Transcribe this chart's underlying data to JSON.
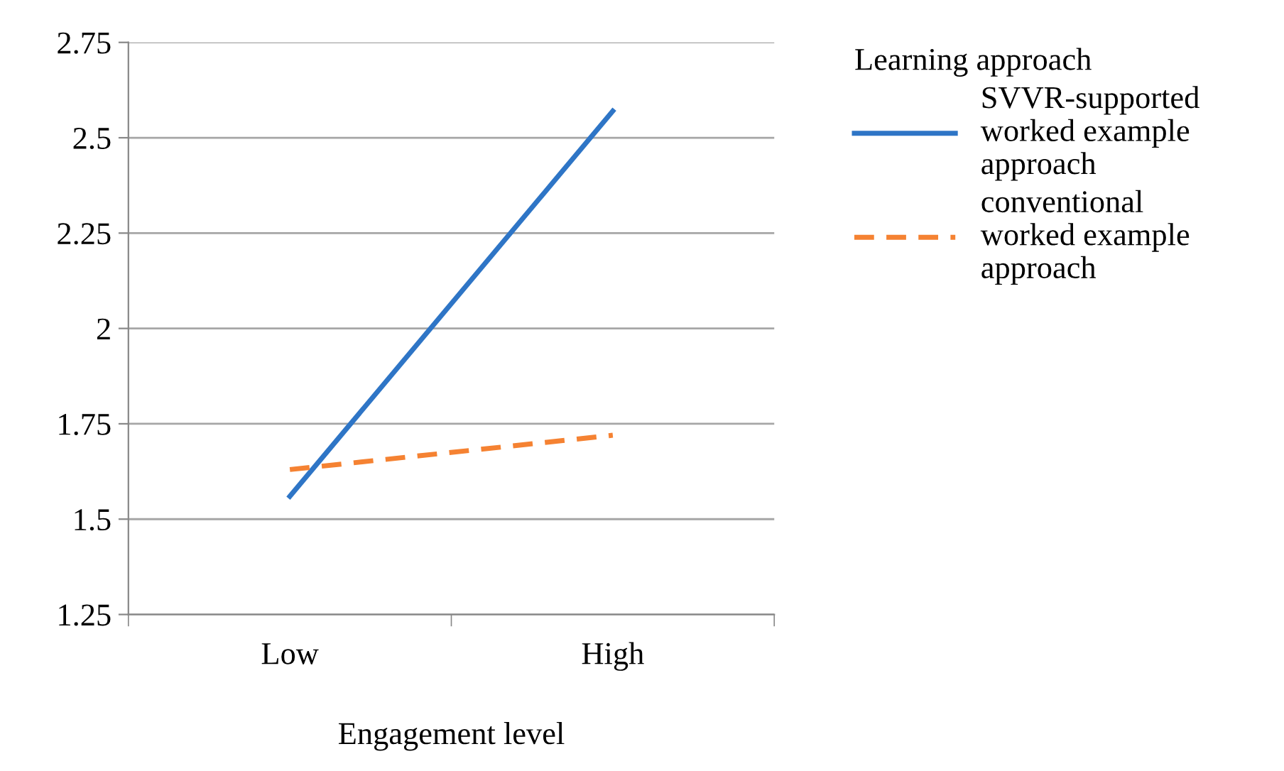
{
  "chart_data": {
    "type": "line",
    "xlabel": "Engagement level",
    "legend_title": "Learning approach",
    "categories": [
      "Low",
      "High"
    ],
    "series": [
      {
        "name": "SVVR-supported\nworked example\napproach",
        "color": "#2e75c6",
        "values": [
          1.56,
          2.57
        ],
        "line_style": "solid"
      },
      {
        "name": "conventional\nworked example\napproach",
        "color": "#f58232",
        "values": [
          1.63,
          1.72
        ],
        "line_style": "dashed"
      }
    ],
    "ylim": [
      1.25,
      2.75
    ],
    "yticks": [
      1.25,
      1.5,
      1.75,
      2,
      2.25,
      2.5,
      2.75
    ],
    "grid": "y",
    "legend": "right",
    "marker": "none"
  }
}
